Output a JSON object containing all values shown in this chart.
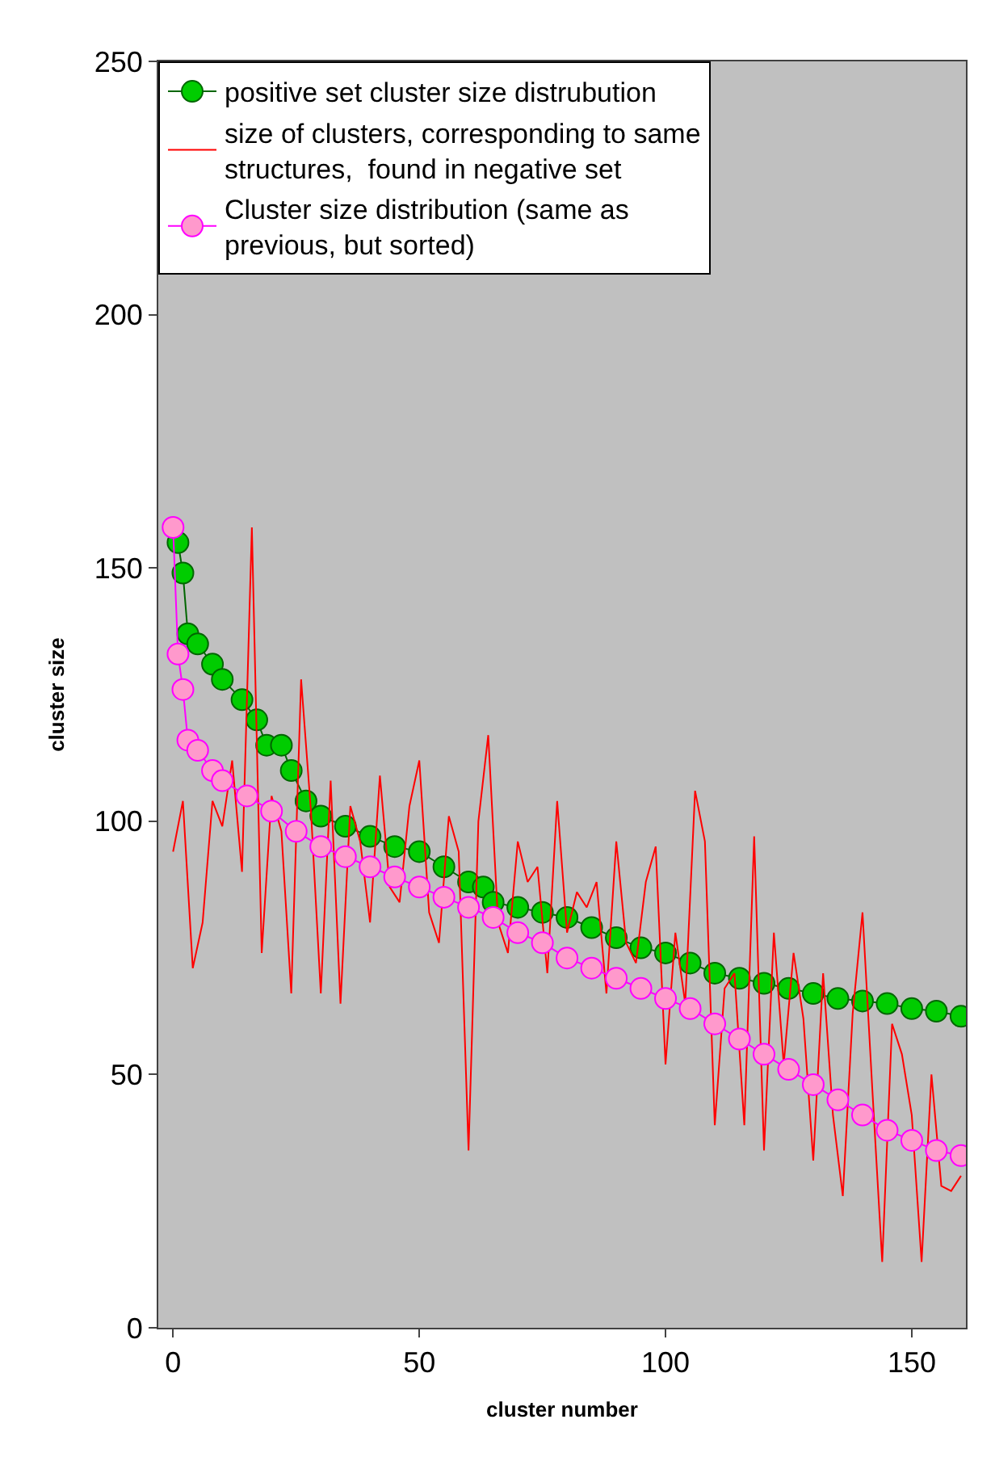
{
  "chart_data": {
    "type": "line",
    "xlabel": "cluster number",
    "ylabel": "cluster size",
    "xlim": [
      -3,
      161
    ],
    "ylim": [
      0,
      250
    ],
    "xticks": [
      0,
      50,
      100,
      150
    ],
    "yticks": [
      0,
      50,
      100,
      150,
      200,
      250
    ],
    "grid": false,
    "legend": "top left",
    "series": [
      {
        "name": "positive set cluster size distrubution",
        "color": "#00cc00",
        "marker": "circle",
        "x": [
          1,
          2,
          3,
          5,
          8,
          10,
          14,
          17,
          19,
          22,
          24,
          27,
          30,
          35,
          40,
          45,
          50,
          55,
          60,
          63,
          65,
          70,
          75,
          80,
          85,
          90,
          95,
          100,
          105,
          110,
          115,
          120,
          125,
          130,
          135,
          140,
          145,
          150,
          155,
          160
        ],
        "values": [
          155,
          149,
          137,
          135,
          131,
          128,
          124,
          120,
          115,
          115,
          110,
          104,
          101,
          99,
          97,
          95,
          94,
          91,
          88,
          87,
          84,
          83,
          82,
          81,
          79,
          77,
          75,
          74,
          72,
          70,
          69,
          68,
          67,
          66,
          65,
          64.5,
          64,
          63,
          62.5,
          61.5
        ]
      },
      {
        "name": "size of clusters, corresponding to same\nstructures,  found in negative set",
        "color": "#ff0000",
        "marker": "none",
        "x": [
          0,
          2,
          4,
          6,
          8,
          10,
          12,
          14,
          16,
          18,
          20,
          22,
          24,
          26,
          28,
          30,
          32,
          34,
          36,
          38,
          40,
          42,
          44,
          46,
          48,
          50,
          52,
          54,
          56,
          58,
          60,
          62,
          64,
          66,
          68,
          70,
          72,
          74,
          76,
          78,
          80,
          82,
          84,
          86,
          88,
          90,
          92,
          94,
          96,
          98,
          100,
          102,
          104,
          106,
          108,
          110,
          112,
          114,
          116,
          118,
          120,
          122,
          124,
          126,
          128,
          130,
          132,
          134,
          136,
          138,
          140,
          142,
          144,
          146,
          148,
          150,
          152,
          154,
          156,
          158,
          160
        ],
        "values": [
          94,
          104,
          71,
          80,
          104,
          99,
          112,
          90,
          158,
          74,
          105,
          98,
          66,
          128,
          102,
          66,
          108,
          64,
          103,
          96,
          80,
          109,
          87,
          84,
          103,
          112,
          82,
          76,
          101,
          94,
          35,
          100,
          117,
          80,
          74,
          96,
          88,
          91,
          70,
          104,
          78,
          86,
          83,
          88,
          66,
          96,
          76,
          72,
          88,
          95,
          52,
          78,
          64,
          106,
          96,
          40,
          67,
          70,
          40,
          97,
          35,
          78,
          52,
          74,
          61,
          33,
          70,
          42,
          26,
          62,
          82,
          47,
          13,
          60,
          54,
          42,
          13,
          50,
          28,
          27,
          30
        ]
      },
      {
        "name": "Cluster size distribution (same as\nprevious, but sorted)",
        "color": "#ff99cc",
        "marker": "circle",
        "x": [
          0,
          1,
          2,
          3,
          5,
          8,
          10,
          15,
          20,
          25,
          30,
          35,
          40,
          45,
          50,
          55,
          60,
          65,
          70,
          75,
          80,
          85,
          90,
          95,
          100,
          105,
          110,
          115,
          120,
          125,
          130,
          135,
          140,
          145,
          150,
          155,
          160
        ],
        "values": [
          158,
          133,
          126,
          116,
          114,
          110,
          108,
          105,
          102,
          98,
          95,
          93,
          91,
          89,
          87,
          85,
          83,
          81,
          78,
          76,
          73,
          71,
          69,
          67,
          65,
          63,
          60,
          57,
          54,
          51,
          48,
          45,
          42,
          39,
          37,
          35,
          34
        ]
      }
    ]
  }
}
